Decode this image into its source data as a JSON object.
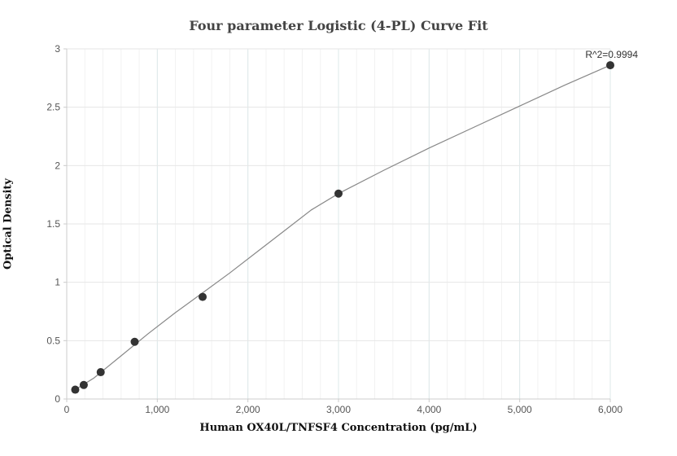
{
  "chart_data": {
    "type": "scatter",
    "title": "Four parameter Logistic (4-PL) Curve Fit",
    "xlabel": "Human OX40L/TNFSF4 Concentration (pg/mL)",
    "ylabel": "Optical Density",
    "xlim": [
      0,
      6000
    ],
    "ylim": [
      0,
      3
    ],
    "x_ticks": [
      0,
      1000,
      2000,
      3000,
      4000,
      5000,
      6000
    ],
    "x_tick_labels": [
      "0",
      "1,000",
      "2,000",
      "3,000",
      "4,000",
      "5,000",
      "6,000"
    ],
    "y_ticks": [
      0,
      0.5,
      1,
      1.5,
      2,
      2.5,
      3
    ],
    "y_tick_labels": [
      "0",
      "0.5",
      "1",
      "1.5",
      "2",
      "2.5",
      "3"
    ],
    "grid": true,
    "series": [
      {
        "x": [
          94,
          188,
          375,
          750,
          1500,
          3000,
          6000
        ],
        "y": [
          0.08,
          0.12,
          0.23,
          0.49,
          0.875,
          1.76,
          2.86
        ]
      }
    ],
    "fit_curve": {
      "x": [
        94,
        300,
        600,
        900,
        1200,
        1500,
        1800,
        2100,
        2400,
        2700,
        3000,
        3500,
        4000,
        4500,
        5000,
        5500,
        6000
      ],
      "y": [
        0.08,
        0.18,
        0.37,
        0.56,
        0.74,
        0.91,
        1.08,
        1.26,
        1.44,
        1.62,
        1.76,
        1.96,
        2.15,
        2.33,
        2.51,
        2.69,
        2.86
      ]
    },
    "annotation": "R^2=0.9994",
    "colors": {
      "marker": "#333333",
      "curve": "#888888",
      "grid": "#e6e6e6",
      "axis": "#cccccc"
    }
  }
}
